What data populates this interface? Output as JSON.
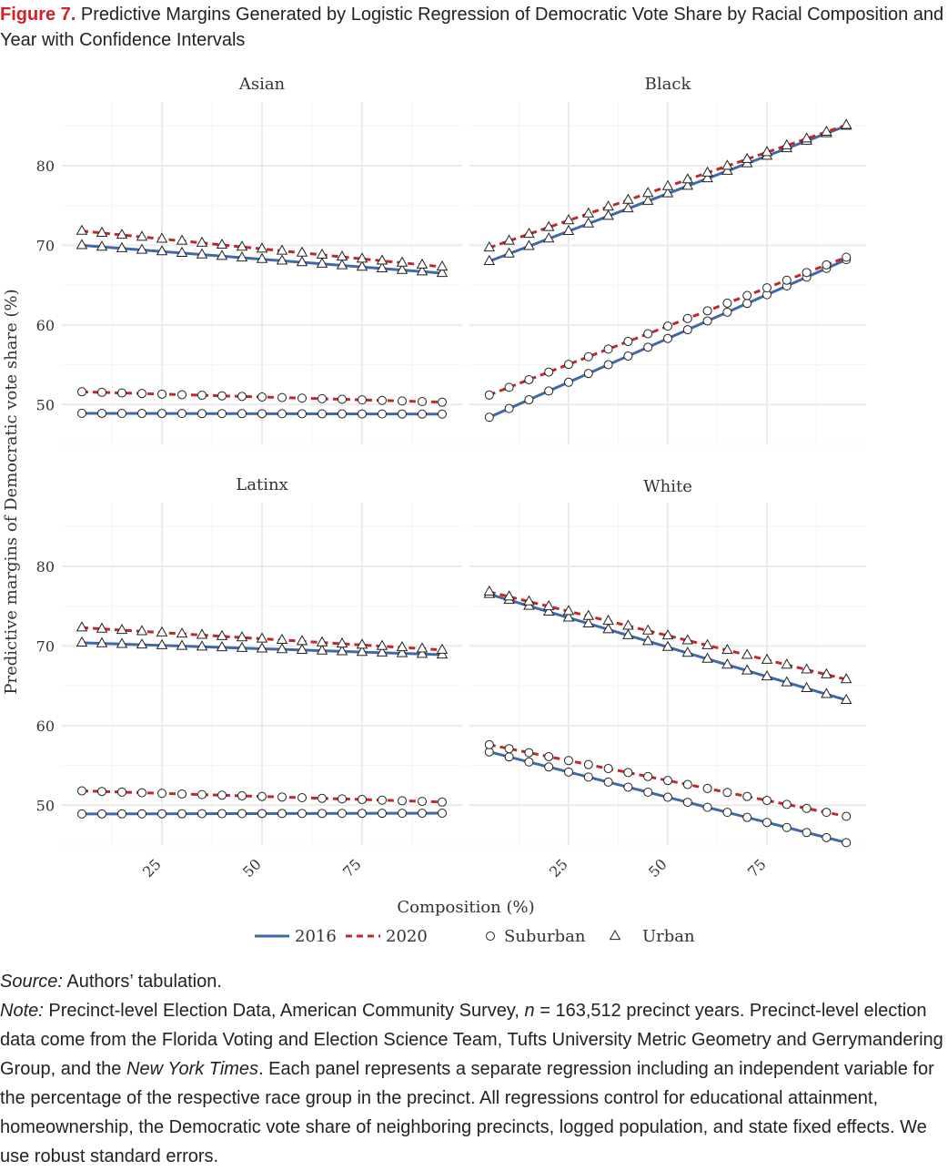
{
  "caption": {
    "label": "Figure 7.",
    "text": "Predictive Margins Generated by Logistic Regression of Democratic Vote Share by Racial Composition and Year with Confidence Intervals"
  },
  "colors": {
    "y2016": "#4169a8",
    "y2020": "#c0282d",
    "grid": "#ebebeb"
  },
  "chart_data": {
    "type": "line",
    "xlabel": "Composition (%)",
    "ylabel": "Predictive margins of Democratic vote share (%)",
    "x_ticks": [
      25,
      50,
      75
    ],
    "y_ticks": [
      50,
      60,
      70,
      80
    ],
    "xlim": [
      0,
      100
    ],
    "ylim": [
      45,
      88
    ],
    "legend": {
      "position": "bottom",
      "years": [
        {
          "label": "2016",
          "style": "solid"
        },
        {
          "label": "2020",
          "style": "dashed"
        }
      ],
      "areas": [
        {
          "label": "Suburban",
          "marker": "circle"
        },
        {
          "label": "Urban",
          "marker": "triangle"
        }
      ]
    },
    "x": [
      5,
      10,
      15,
      20,
      25,
      30,
      35,
      40,
      45,
      50,
      55,
      60,
      65,
      70,
      75,
      80,
      85,
      90,
      95
    ],
    "panels": [
      {
        "title": "Asian",
        "series": [
          {
            "year": "2016",
            "area": "Urban",
            "y0": 70.0,
            "y1": 66.5
          },
          {
            "year": "2020",
            "area": "Urban",
            "y0": 71.8,
            "y1": 67.3
          },
          {
            "year": "2016",
            "area": "Suburban",
            "y0": 48.9,
            "y1": 48.8
          },
          {
            "year": "2020",
            "area": "Suburban",
            "y0": 51.6,
            "y1": 50.3
          }
        ]
      },
      {
        "title": "Black",
        "series": [
          {
            "year": "2016",
            "area": "Urban",
            "y0": 68.0,
            "y1": 85.0
          },
          {
            "year": "2020",
            "area": "Urban",
            "y0": 69.7,
            "y1": 85.1
          },
          {
            "year": "2016",
            "area": "Suburban",
            "y0": 48.4,
            "y1": 68.2
          },
          {
            "year": "2020",
            "area": "Suburban",
            "y0": 51.2,
            "y1": 68.5
          }
        ]
      },
      {
        "title": "Latinx",
        "series": [
          {
            "year": "2016",
            "area": "Urban",
            "y0": 70.4,
            "y1": 68.9
          },
          {
            "year": "2020",
            "area": "Urban",
            "y0": 72.3,
            "y1": 69.5
          },
          {
            "year": "2016",
            "area": "Suburban",
            "y0": 48.9,
            "y1": 49.0
          },
          {
            "year": "2020",
            "area": "Suburban",
            "y0": 51.8,
            "y1": 50.4
          }
        ]
      },
      {
        "title": "White",
        "series": [
          {
            "year": "2016",
            "area": "Urban",
            "y0": 76.5,
            "y1": 63.2
          },
          {
            "year": "2020",
            "area": "Urban",
            "y0": 76.8,
            "y1": 65.8
          },
          {
            "year": "2016",
            "area": "Suburban",
            "y0": 56.7,
            "y1": 45.3
          },
          {
            "year": "2020",
            "area": "Suburban",
            "y0": 57.6,
            "y1": 48.6
          }
        ]
      }
    ]
  },
  "notes": {
    "source_label": "Source:",
    "source_text": "Authors’ tabulation.",
    "note_label": "Note:",
    "note_a": "Precinct-level Election Data, American Community Survey,",
    "note_n": "n",
    "note_b": "= 163,512 precinct years. Precinct-level election data come from the Florida Voting and Election Science Team, Tufts University Metric Geometry and Gerrymandering Group, and the",
    "note_nyt": "New York Times",
    "note_c": ". Each panel represents a separate regression including an independent variable for the percentage of the respective race group in the precinct. All regressions control for educational attainment, homeownership, the Democratic vote share of neighboring precincts, logged population, and state fixed effects. We use robust standard errors."
  }
}
